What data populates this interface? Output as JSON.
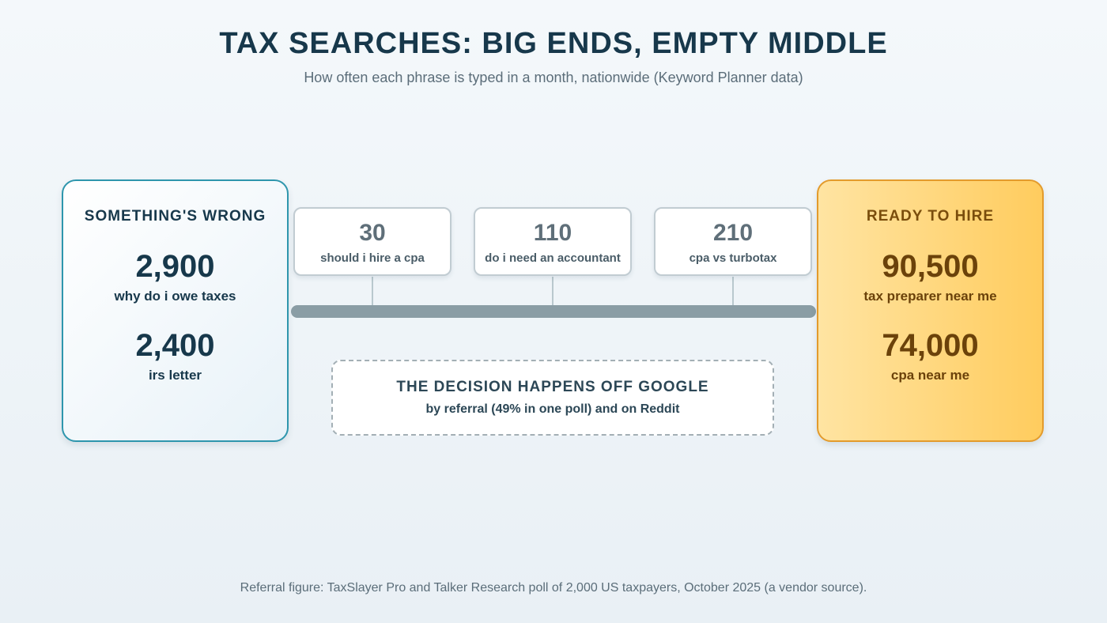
{
  "header": {
    "title": "TAX SEARCHES: BIG ENDS, EMPTY MIDDLE",
    "subtitle": "How often each phrase is typed in a month, nationwide (Keyword Planner data)"
  },
  "left_panel": {
    "title": "SOMETHING'S WRONG",
    "entries": [
      {
        "value": "2,900",
        "label": "why do i owe taxes"
      },
      {
        "value": "2,400",
        "label": "irs letter"
      }
    ],
    "border_color": "#2e96ad"
  },
  "middle": {
    "boxes": [
      {
        "value": "30",
        "label": "should i hire a cpa"
      },
      {
        "value": "110",
        "label": "do i need an accountant"
      },
      {
        "value": "210",
        "label": "cpa vs turbotax"
      }
    ],
    "bar_color": "#8a9da5"
  },
  "right_panel": {
    "title": "READY TO HIRE",
    "entries": [
      {
        "value": "90,500",
        "label": "tax preparer near me"
      },
      {
        "value": "74,000",
        "label": "cpa near me"
      }
    ],
    "border_color": "#e39b2c"
  },
  "decision": {
    "title": "THE DECISION HAPPENS OFF GOOGLE",
    "subtitle": "by referral (49% in one poll) and on Reddit"
  },
  "footnote": "Referral figure: TaxSlayer Pro and Talker Research poll of 2,000 US taxpayers, October 2025 (a vendor source)."
}
